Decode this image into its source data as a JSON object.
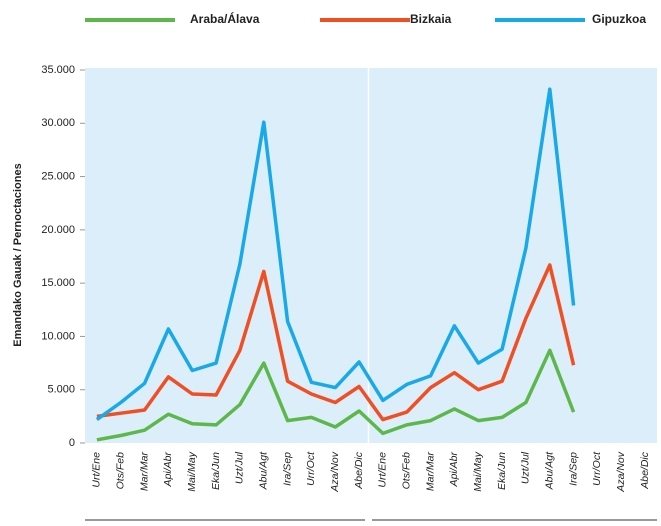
{
  "chart_data": {
    "type": "line",
    "y_label": "Emandako Gauak / Pernoctaciones",
    "categories": [
      "Urt/Ene",
      "Ots/Feb",
      "Mar/Mar",
      "Api/Abr",
      "Mai/May",
      "Eka/Jun",
      "Uzt/Jul",
      "Abu/Agt",
      "Ira/Sep",
      "Urr/Oct",
      "Aza/Nov",
      "Abe/Dic",
      "Urt/Ene",
      "Ots/Feb",
      "Mar/Mar",
      "Api/Abr",
      "Mai/May",
      "Eka/Jun",
      "Uzt/Jul",
      "Abu/Agt",
      "Ira/Sep",
      "Urr/Oct",
      "Aza/Nov",
      "Abe/Dic"
    ],
    "series": [
      {
        "name": "Araba/Álava",
        "color": "#5cb84a",
        "values": [
          300,
          700,
          1200,
          2700,
          1800,
          1700,
          3600,
          7500,
          2100,
          2400,
          1500,
          3000,
          900,
          1700,
          2100,
          3200,
          2100,
          2400,
          3800,
          8700,
          2900,
          null,
          null,
          null
        ]
      },
      {
        "name": "Bizkaia",
        "color": "#f04e23",
        "values": [
          2500,
          2800,
          3100,
          6200,
          4600,
          4500,
          8700,
          16100,
          5800,
          4600,
          3800,
          5300,
          2200,
          2900,
          5200,
          6600,
          5000,
          5800,
          11700,
          16700,
          7300,
          null,
          null,
          null
        ]
      },
      {
        "name": "Gipuzkoa",
        "color": "#18a9e8",
        "values": [
          2200,
          3800,
          5600,
          10700,
          6800,
          7500,
          16800,
          30100,
          11400,
          5700,
          5200,
          7600,
          4000,
          5500,
          6300,
          11000,
          7500,
          8800,
          18300,
          33200,
          12900,
          null,
          null,
          null
        ]
      }
    ],
    "ylim": [
      0,
      35000
    ],
    "yticks": [
      0,
      {
        "value": 5000,
        "label": "5.000"
      },
      {
        "value": 10000,
        "label": "10.000"
      },
      {
        "value": 15000,
        "label": "15.000"
      },
      {
        "value": 20000,
        "label": "20.000"
      },
      {
        "value": 25000,
        "label": "25.000"
      },
      {
        "value": 30000,
        "label": "30.000"
      },
      {
        "value": 35000,
        "label": "35.000"
      }
    ],
    "grid": false,
    "legend": "top"
  }
}
